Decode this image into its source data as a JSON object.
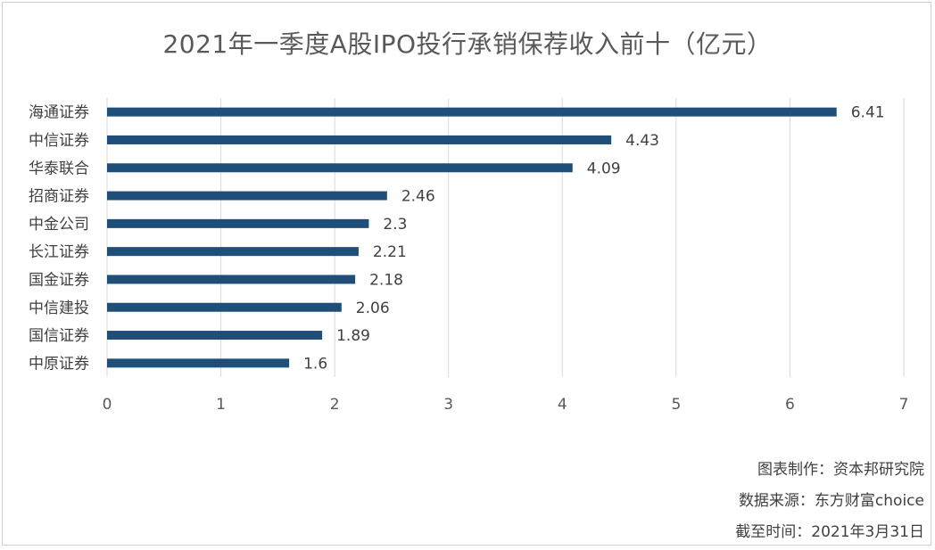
{
  "chart_data": {
    "type": "bar",
    "orientation": "horizontal",
    "title": "2021年一季度A股IPO投行承销保荐收入前十（亿元）",
    "categories": [
      "海通证券",
      "中信证券",
      "华泰联合",
      "招商证券",
      "中金公司",
      "长江证券",
      "国金证券",
      "中信建投",
      "国信证券",
      "中原证券"
    ],
    "values": [
      6.41,
      4.43,
      4.09,
      2.46,
      2.3,
      2.21,
      2.18,
      2.06,
      1.89,
      1.6
    ],
    "value_labels": [
      "6.41",
      "4.43",
      "4.09",
      "2.46",
      "2.3",
      "2.21",
      "2.18",
      "2.06",
      "1.89",
      "1.6"
    ],
    "xlim": [
      0,
      7
    ],
    "xticks": [
      "0",
      "1",
      "2",
      "3",
      "4",
      "5",
      "6",
      "7"
    ],
    "xlabel": "",
    "ylabel": "",
    "grid": true,
    "bar_color": "#1f4e79"
  },
  "notes": {
    "maker": "图表制作：资本邦研究院",
    "source": "数据来源：东方财富choice",
    "date": "截至时间：2021年3月31日"
  }
}
